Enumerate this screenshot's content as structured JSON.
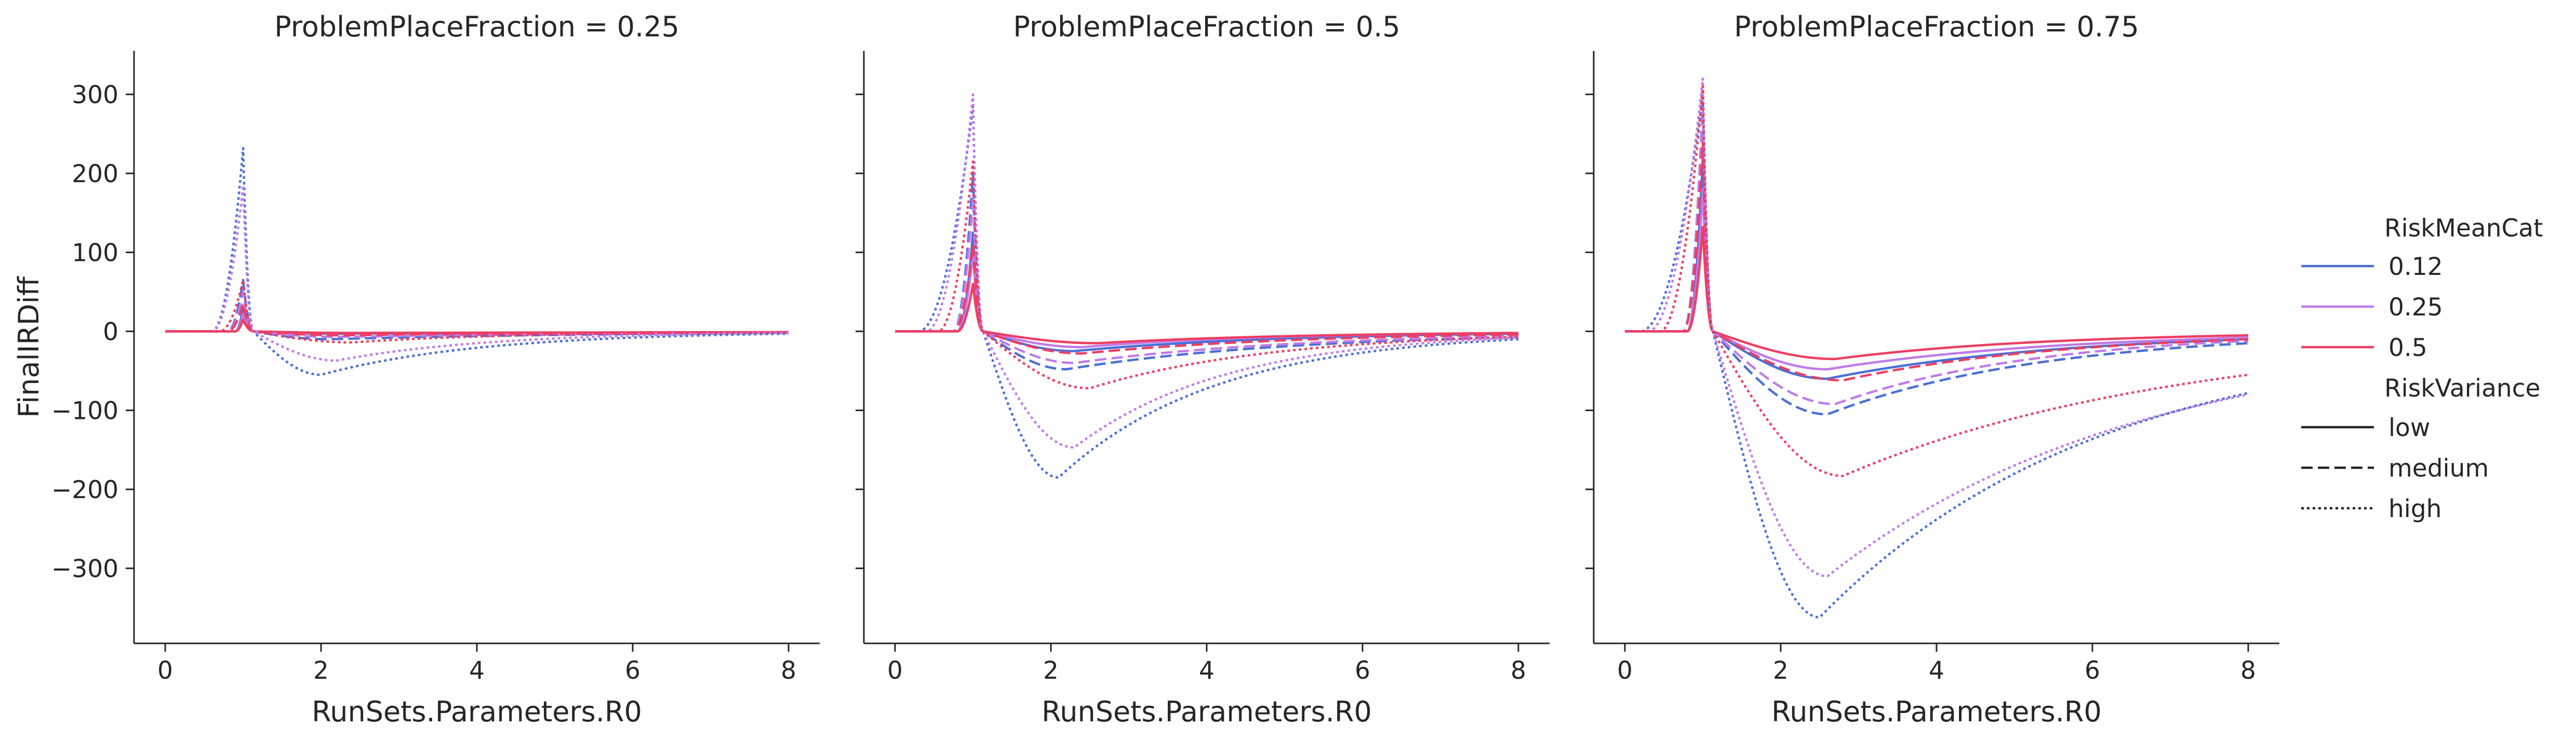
{
  "chart_data": {
    "type": "line",
    "ylabel": "FinalIRDiff",
    "xlabel": "RunSets.Parameters.R0",
    "xlim": [
      -0.4,
      8.4
    ],
    "ylim": [
      -395,
      355
    ],
    "xticks": [
      0,
      2,
      4,
      6,
      8
    ],
    "yticks": [
      -300,
      -200,
      -100,
      0,
      100,
      200,
      300
    ],
    "grid": false,
    "shared_y": true,
    "legend": {
      "placement": "right",
      "hue_title": "RiskMeanCat",
      "hue": [
        {
          "label": "0.12",
          "color": "#4a6fd6"
        },
        {
          "label": "0.25",
          "color": "#c17ae8"
        },
        {
          "label": "0.5",
          "color": "#ee3e62"
        }
      ],
      "style_title": "RiskVariance",
      "styles": [
        {
          "label": "low",
          "dash": "solid"
        },
        {
          "label": "medium",
          "dash": "dashed"
        },
        {
          "label": "high",
          "dash": "dotted"
        }
      ]
    },
    "panels": [
      {
        "title": "ProblemPlaceFraction = 0.25",
        "series": [
          {
            "mean": "0.12",
            "variance": "low",
            "onset": 0.9,
            "peak": 30,
            "minx": 2.2,
            "min": -3,
            "end": -1
          },
          {
            "mean": "0.25",
            "variance": "low",
            "onset": 0.9,
            "peak": 22,
            "minx": 2.3,
            "min": -2,
            "end": -1
          },
          {
            "mean": "0.5",
            "variance": "low",
            "onset": 0.9,
            "peak": 15,
            "minx": 2.5,
            "min": -2,
            "end": -1
          },
          {
            "mean": "0.12",
            "variance": "medium",
            "onset": 0.8,
            "peak": 65,
            "minx": 2.1,
            "min": -10,
            "end": -2
          },
          {
            "mean": "0.25",
            "variance": "medium",
            "onset": 0.8,
            "peak": 50,
            "minx": 2.2,
            "min": -7,
            "end": -2
          },
          {
            "mean": "0.5",
            "variance": "medium",
            "onset": 0.8,
            "peak": 35,
            "minx": 2.3,
            "min": -5,
            "end": -1
          },
          {
            "mean": "0.12",
            "variance": "high",
            "onset": 0.6,
            "peak": 232,
            "minx": 2.0,
            "min": -55,
            "end": -3
          },
          {
            "mean": "0.25",
            "variance": "high",
            "onset": 0.6,
            "peak": 185,
            "minx": 2.2,
            "min": -37,
            "end": -2
          },
          {
            "mean": "0.5",
            "variance": "high",
            "onset": 0.7,
            "peak": 65,
            "minx": 2.4,
            "min": -14,
            "end": -1
          }
        ]
      },
      {
        "title": "ProblemPlaceFraction = 0.5",
        "series": [
          {
            "mean": "0.12",
            "variance": "low",
            "onset": 0.8,
            "peak": 125,
            "minx": 2.3,
            "min": -25,
            "end": -3
          },
          {
            "mean": "0.25",
            "variance": "low",
            "onset": 0.8,
            "peak": 100,
            "minx": 2.4,
            "min": -20,
            "end": -2
          },
          {
            "mean": "0.5",
            "variance": "low",
            "onset": 0.8,
            "peak": 60,
            "minx": 2.6,
            "min": -15,
            "end": -2
          },
          {
            "mean": "0.12",
            "variance": "medium",
            "onset": 0.75,
            "peak": 200,
            "minx": 2.2,
            "min": -48,
            "end": -7
          },
          {
            "mean": "0.25",
            "variance": "medium",
            "onset": 0.75,
            "peak": 170,
            "minx": 2.3,
            "min": -40,
            "end": -6
          },
          {
            "mean": "0.5",
            "variance": "medium",
            "onset": 0.75,
            "peak": 110,
            "minx": 2.4,
            "min": -28,
            "end": -4
          },
          {
            "mean": "0.12",
            "variance": "high",
            "onset": 0.3,
            "peak": 285,
            "minx": 2.1,
            "min": -185,
            "end": -10
          },
          {
            "mean": "0.25",
            "variance": "high",
            "onset": 0.4,
            "peak": 300,
            "minx": 2.3,
            "min": -147,
            "end": -8
          },
          {
            "mean": "0.5",
            "variance": "high",
            "onset": 0.55,
            "peak": 215,
            "minx": 2.5,
            "min": -72,
            "end": -7
          }
        ]
      },
      {
        "title": "ProblemPlaceFraction = 0.75",
        "series": [
          {
            "mean": "0.12",
            "variance": "low",
            "onset": 0.8,
            "peak": 220,
            "minx": 2.6,
            "min": -60,
            "end": -10
          },
          {
            "mean": "0.25",
            "variance": "low",
            "onset": 0.8,
            "peak": 180,
            "minx": 2.6,
            "min": -48,
            "end": -8
          },
          {
            "mean": "0.5",
            "variance": "low",
            "onset": 0.8,
            "peak": 132,
            "minx": 2.7,
            "min": -35,
            "end": -5
          },
          {
            "mean": "0.12",
            "variance": "medium",
            "onset": 0.75,
            "peak": 290,
            "minx": 2.6,
            "min": -105,
            "end": -15
          },
          {
            "mean": "0.25",
            "variance": "medium",
            "onset": 0.75,
            "peak": 280,
            "minx": 2.7,
            "min": -92,
            "end": -12
          },
          {
            "mean": "0.5",
            "variance": "medium",
            "onset": 0.75,
            "peak": 240,
            "minx": 2.8,
            "min": -62,
            "end": -10
          },
          {
            "mean": "0.12",
            "variance": "high",
            "onset": 0.2,
            "peak": 300,
            "minx": 2.5,
            "min": -362,
            "end": -78
          },
          {
            "mean": "0.25",
            "variance": "high",
            "onset": 0.3,
            "peak": 320,
            "minx": 2.6,
            "min": -310,
            "end": -80
          },
          {
            "mean": "0.5",
            "variance": "high",
            "onset": 0.45,
            "peak": 310,
            "minx": 2.8,
            "min": -183,
            "end": -55
          }
        ]
      }
    ]
  }
}
